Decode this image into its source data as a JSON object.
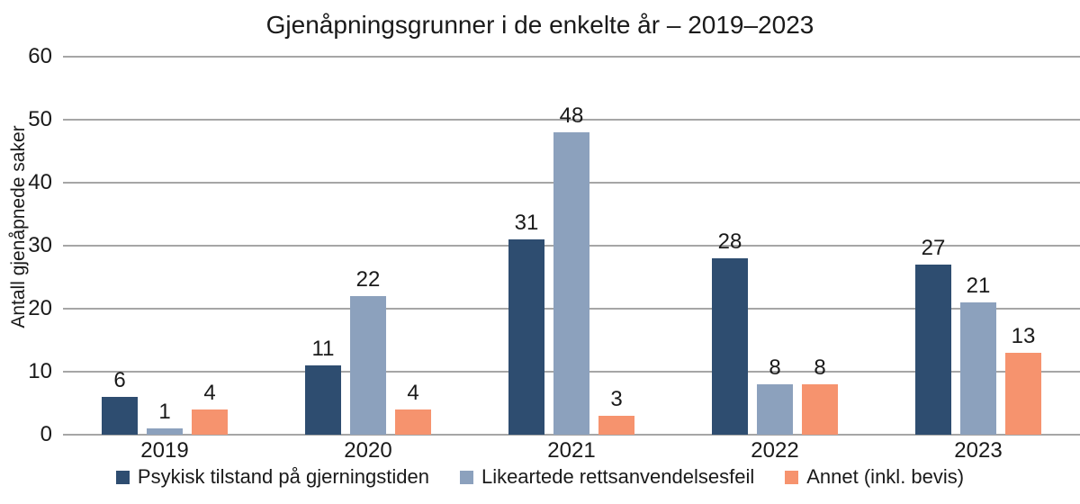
{
  "chart_data": {
    "type": "bar",
    "title": "Gjenåpningsgrunner i de enkelte år – 2019–2023",
    "ylabel": "Antall gjenåpnede saker",
    "xlabel": "",
    "categories": [
      "2019",
      "2020",
      "2021",
      "2022",
      "2023"
    ],
    "series": [
      {
        "name": "Psykisk tilstand på gjerningstiden",
        "color": "#2e4d70",
        "values": [
          6,
          11,
          31,
          28,
          27
        ]
      },
      {
        "name": "Likeartede rettsanvendelsesfeil",
        "color": "#8ca1bd",
        "values": [
          1,
          22,
          48,
          8,
          21
        ]
      },
      {
        "name": "Annet (inkl. bevis)",
        "color": "#f6936e",
        "values": [
          4,
          4,
          3,
          8,
          13
        ]
      }
    ],
    "yticks": [
      0,
      10,
      20,
      30,
      40,
      50,
      60
    ],
    "ylim": [
      0,
      60
    ],
    "grid": true,
    "gridline_color": "#a6a6a6",
    "legend_position": "bottom",
    "data_labels": true
  }
}
